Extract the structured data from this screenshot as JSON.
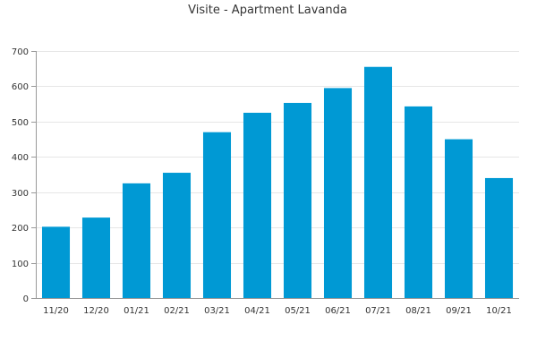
{
  "chart_data": {
    "type": "bar",
    "title": "Visite - Apartment Lavanda",
    "xlabel": "",
    "ylabel": "",
    "categories": [
      "11/20",
      "12/20",
      "01/21",
      "02/21",
      "03/21",
      "04/21",
      "05/21",
      "06/21",
      "07/21",
      "08/21",
      "09/21",
      "10/21"
    ],
    "values": [
      202,
      228,
      325,
      355,
      470,
      525,
      553,
      595,
      655,
      543,
      450,
      340
    ],
    "ylim": [
      0,
      700
    ],
    "yticks": [
      0,
      100,
      200,
      300,
      400,
      500,
      600,
      700
    ],
    "grid": true,
    "legend": "none",
    "colors": {
      "bar": "#0099d4",
      "grid": "#e6e6e6",
      "axis": "#999999",
      "text": "#333333"
    }
  }
}
